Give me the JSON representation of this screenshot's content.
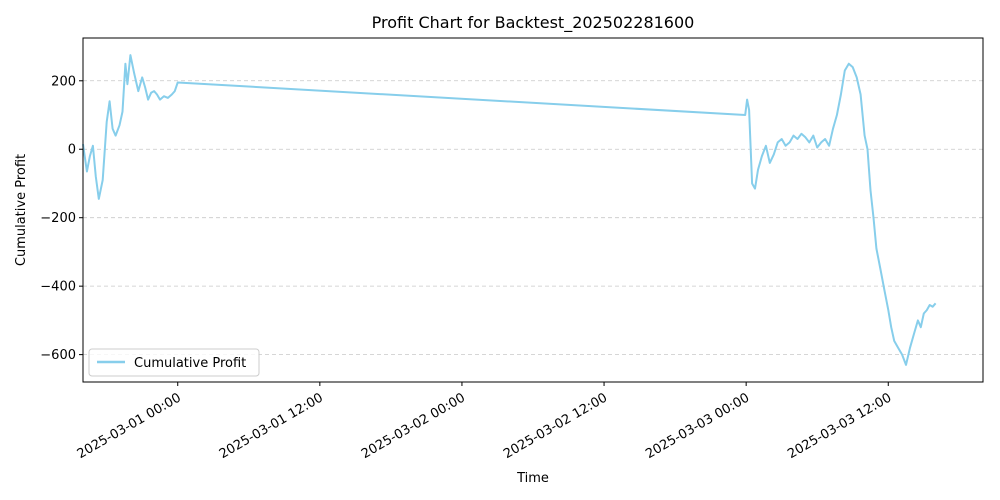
{
  "chart_data": {
    "type": "line",
    "title": "Profit Chart for Backtest_202502281600",
    "xlabel": "Time",
    "ylabel": "Cumulative Profit",
    "x_axis_type": "datetime",
    "xlim": [
      "2025-02-28 16:00",
      "2025-03-03 20:00"
    ],
    "ylim": [
      -680,
      325
    ],
    "x_ticks": [
      "2025-03-01 00:00",
      "2025-03-01 12:00",
      "2025-03-02 00:00",
      "2025-03-02 12:00",
      "2025-03-03 00:00",
      "2025-03-03 12:00"
    ],
    "y_ticks": [
      200,
      0,
      -200,
      -400,
      -600
    ],
    "y_tick_labels": [
      "200",
      "0",
      "−200",
      "−400",
      "−600"
    ],
    "grid": "horizontal dashed",
    "legend_position": "lower-left",
    "line_color": "#87ceeb",
    "series": [
      {
        "name": "Cumulative Profit",
        "x": [
          "2025-02-28 16:00",
          "2025-02-28 16:20",
          "2025-02-28 16:35",
          "2025-02-28 16:50",
          "2025-02-28 17:05",
          "2025-02-28 17:20",
          "2025-02-28 17:40",
          "2025-02-28 18:00",
          "2025-02-28 18:15",
          "2025-02-28 18:30",
          "2025-02-28 18:45",
          "2025-02-28 19:05",
          "2025-02-28 19:20",
          "2025-02-28 19:35",
          "2025-02-28 19:45",
          "2025-02-28 20:00",
          "2025-02-28 20:20",
          "2025-02-28 20:40",
          "2025-02-28 21:00",
          "2025-02-28 21:15",
          "2025-02-28 21:30",
          "2025-02-28 21:45",
          "2025-02-28 22:00",
          "2025-02-28 22:15",
          "2025-02-28 22:30",
          "2025-02-28 22:50",
          "2025-02-28 23:10",
          "2025-02-28 23:30",
          "2025-02-28 23:45",
          "2025-03-01 00:00",
          "2025-03-02 23:55",
          "2025-03-03 00:05",
          "2025-03-03 00:15",
          "2025-03-03 00:30",
          "2025-03-03 00:45",
          "2025-03-03 01:00",
          "2025-03-03 01:20",
          "2025-03-03 01:40",
          "2025-03-03 02:00",
          "2025-03-03 02:20",
          "2025-03-03 02:40",
          "2025-03-03 03:00",
          "2025-03-03 03:20",
          "2025-03-03 03:40",
          "2025-03-03 04:00",
          "2025-03-03 04:20",
          "2025-03-03 04:40",
          "2025-03-03 05:00",
          "2025-03-03 05:20",
          "2025-03-03 05:40",
          "2025-03-03 06:00",
          "2025-03-03 06:20",
          "2025-03-03 06:40",
          "2025-03-03 07:00",
          "2025-03-03 07:20",
          "2025-03-03 07:40",
          "2025-03-03 08:00",
          "2025-03-03 08:20",
          "2025-03-03 08:40",
          "2025-03-03 09:00",
          "2025-03-03 09:20",
          "2025-03-03 09:40",
          "2025-03-03 10:00",
          "2025-03-03 10:15",
          "2025-03-03 10:30",
          "2025-03-03 10:45",
          "2025-03-03 11:00",
          "2025-03-03 11:20",
          "2025-03-03 11:40",
          "2025-03-03 12:00",
          "2025-03-03 12:15",
          "2025-03-03 12:30",
          "2025-03-03 12:50",
          "2025-03-03 13:10",
          "2025-03-03 13:30",
          "2025-03-03 13:50",
          "2025-03-03 14:10",
          "2025-03-03 14:30",
          "2025-03-03 14:45",
          "2025-03-03 15:00",
          "2025-03-03 15:15",
          "2025-03-03 15:30",
          "2025-03-03 15:45",
          "2025-03-03 16:00"
        ],
        "y": [
          15,
          -65,
          -20,
          10,
          -80,
          -145,
          -90,
          80,
          140,
          60,
          40,
          70,
          110,
          250,
          190,
          275,
          220,
          170,
          210,
          180,
          145,
          165,
          170,
          160,
          145,
          155,
          150,
          160,
          170,
          195,
          100,
          145,
          115,
          -100,
          -115,
          -60,
          -20,
          10,
          -40,
          -15,
          20,
          30,
          10,
          20,
          40,
          30,
          45,
          35,
          20,
          40,
          5,
          20,
          30,
          10,
          60,
          100,
          160,
          230,
          250,
          240,
          210,
          160,
          40,
          0,
          -120,
          -200,
          -290,
          -350,
          -410,
          -470,
          -520,
          -560,
          -580,
          -600,
          -630,
          -580,
          -540,
          -500,
          -520,
          -480,
          -470,
          -455,
          -460,
          -450
        ]
      }
    ]
  }
}
